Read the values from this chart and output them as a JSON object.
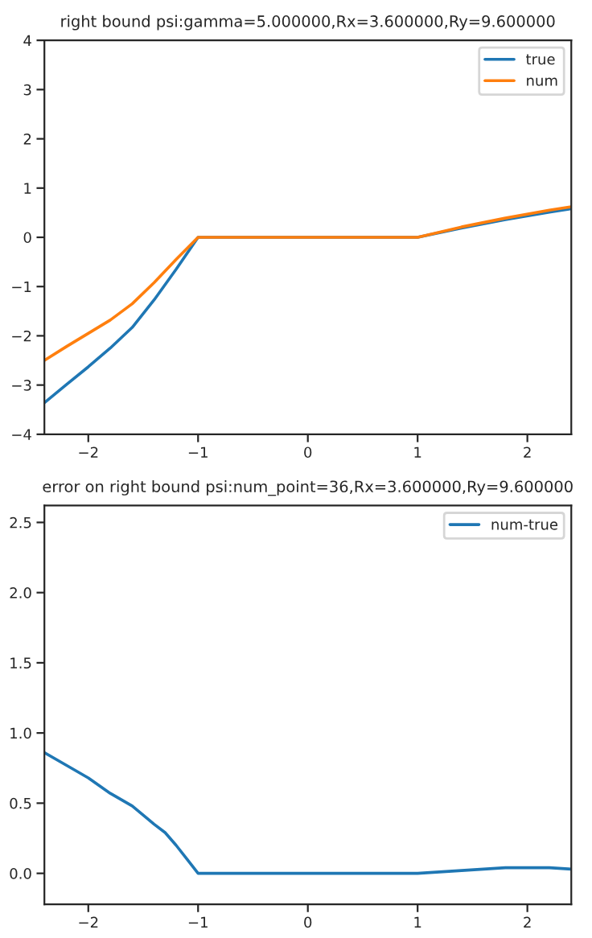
{
  "chart_data": [
    {
      "type": "line",
      "title": "right bound psi:gamma=5.000000,Rx=3.600000,Ry=9.600000",
      "x": [
        -2.4,
        -2.2,
        -2.0,
        -1.8,
        -1.6,
        -1.4,
        -1.2,
        -1.0,
        1.0,
        1.4,
        1.8,
        2.2,
        2.4
      ],
      "series": [
        {
          "name": "true",
          "color": "#1f77b4",
          "values": [
            -3.36,
            -2.99,
            -2.63,
            -2.25,
            -1.83,
            -1.27,
            -0.65,
            0,
            0,
            0.19,
            0.36,
            0.51,
            0.58
          ]
        },
        {
          "name": "num",
          "color": "#ff7f0e",
          "values": [
            -2.5,
            -2.22,
            -1.95,
            -1.68,
            -1.35,
            -0.92,
            -0.45,
            0,
            0,
            0.21,
            0.39,
            0.55,
            0.62
          ]
        }
      ],
      "xlim": [
        -2.4,
        2.4
      ],
      "ylim": [
        -4,
        4
      ],
      "xticks": [
        -2,
        -1,
        0,
        1,
        2
      ],
      "yticks": [
        -4,
        -3,
        -2,
        -1,
        0,
        1,
        2,
        3,
        4
      ],
      "legend": "top right",
      "grid": false
    },
    {
      "type": "line",
      "title": "error on right bound psi:num_point=36,Rx=3.600000,Ry=9.600000",
      "x": [
        -2.4,
        -2.2,
        -2.0,
        -1.8,
        -1.6,
        -1.4,
        -1.3,
        -1.2,
        -1.1,
        -1.0,
        1.0,
        1.2,
        1.4,
        1.6,
        1.8,
        2.0,
        2.2,
        2.4
      ],
      "series": [
        {
          "name": "num-true",
          "color": "#1f77b4",
          "values": [
            0.86,
            0.77,
            0.68,
            0.57,
            0.48,
            0.35,
            0.29,
            0.2,
            0.1,
            0,
            0,
            0.01,
            0.02,
            0.03,
            0.04,
            0.04,
            0.04,
            0.03
          ]
        }
      ],
      "xlim": [
        -2.4,
        2.4
      ],
      "ylim": [
        -0.22,
        2.62
      ],
      "xticks": [
        -2,
        -1,
        0,
        1,
        2
      ],
      "yticks": [
        {
          "value": 0,
          "label": "0.0"
        },
        {
          "value": 0.5,
          "label": "0.5"
        },
        {
          "value": 1,
          "label": "1.0"
        },
        {
          "value": 1.5,
          "label": "1.5"
        },
        {
          "value": 2,
          "label": "2.0"
        },
        {
          "value": 2.5,
          "label": "2.5"
        }
      ],
      "legend": "top right",
      "grid": false
    }
  ]
}
